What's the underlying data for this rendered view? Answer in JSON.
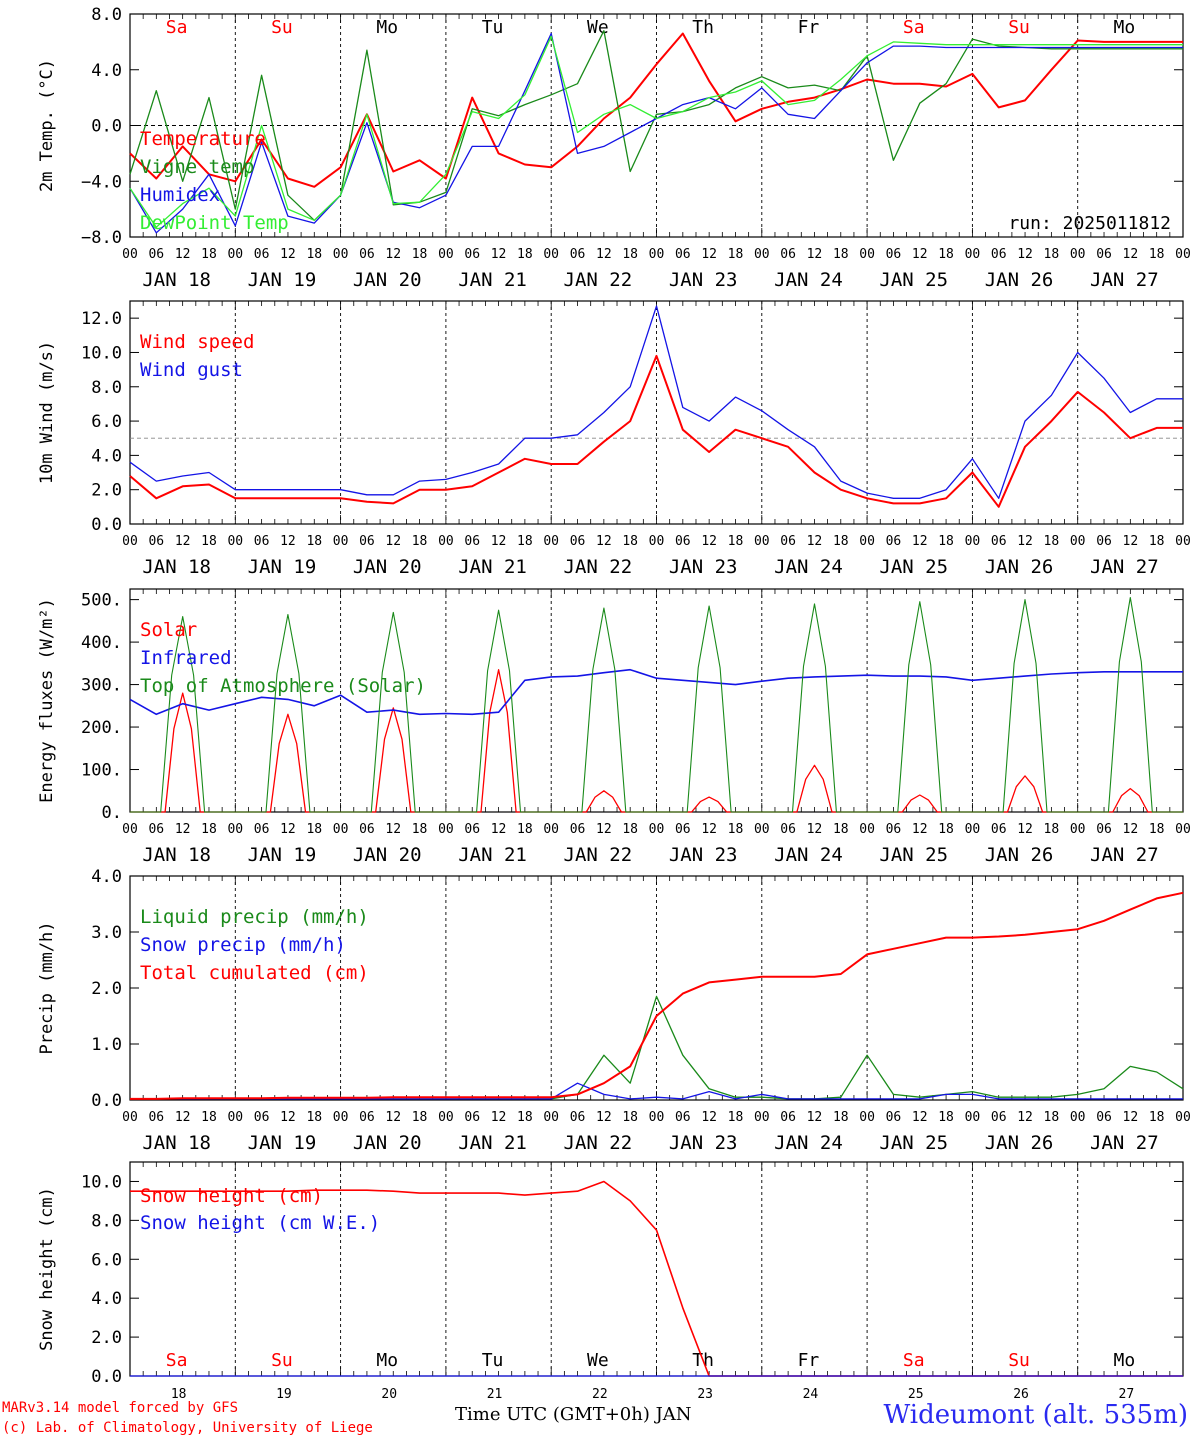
{
  "days": [
    "18",
    "19",
    "20",
    "21",
    "22",
    "23",
    "24",
    "25",
    "26",
    "27"
  ],
  "day_labels": [
    "JAN 18",
    "JAN 19",
    "JAN 20",
    "JAN 21",
    "JAN 22",
    "JAN 23",
    "JAN 24",
    "JAN 25",
    "JAN 26",
    "JAN 27"
  ],
  "weekdays": [
    "Sa",
    "Su",
    "Mo",
    "Tu",
    "We",
    "Th",
    "Fr",
    "Sa",
    "Su",
    "Mo"
  ],
  "weekday_colors": [
    "#ff0000",
    "#ff0000",
    "#000000",
    "#000000",
    "#000000",
    "#000000",
    "#000000",
    "#ff0000",
    "#ff0000",
    "#000000"
  ],
  "hour_ticks": [
    "00",
    "06",
    "12",
    "18"
  ],
  "colors": {
    "red": "#ff0000",
    "green": "#1a8a1a",
    "blue": "#1414e6",
    "lightgreen": "#33ee33"
  },
  "footer": {
    "model": "MARv3.14 model forced by GFS",
    "credit": "(c) Lab. of Climatology, University of Liege",
    "xaxis": "Time UTC (GMT+0h) JAN",
    "station": "Wideumont (alt. 535m)"
  },
  "chart_data": [
    {
      "id": "temp",
      "type": "line",
      "ylabel": "2m Temp. (°C)",
      "ylim": [
        -8,
        8
      ],
      "yticks": [
        8,
        4,
        0,
        -4,
        -8
      ],
      "ytick_labels": [
        "8.0",
        "4.0",
        "0.0",
        "−4.0",
        "−8.0"
      ],
      "ref_line": 0,
      "annotation": "run: 2025011812",
      "x_hours": [
        0,
        6,
        12,
        18,
        24,
        30,
        36,
        42,
        48,
        54,
        60,
        66,
        72,
        78,
        84,
        90,
        96,
        102,
        108,
        114,
        120,
        126,
        132,
        138,
        144,
        150,
        156,
        162,
        168,
        174,
        180,
        186,
        192,
        198,
        204,
        210,
        216,
        222,
        228,
        234,
        240
      ],
      "series": [
        {
          "name": "Temperature",
          "color": "red",
          "width": 2,
          "values": [
            -2,
            -3.8,
            -1.5,
            -3.5,
            -4,
            -1,
            -3.8,
            -4.4,
            -3,
            0.8,
            -3.3,
            -2.5,
            -3.8,
            2,
            -2,
            -2.8,
            -3,
            -1.5,
            0.5,
            2,
            4.4,
            6.6,
            3.2,
            0.3,
            1.2,
            1.7,
            2,
            2.6,
            3.3,
            3,
            3,
            2.8,
            3.7,
            1.3,
            1.8,
            4,
            6.1,
            6,
            6,
            6,
            6
          ]
        },
        {
          "name": "Vigne temp",
          "color": "green",
          "width": 1.3,
          "values": [
            -3.5,
            2.5,
            -4,
            2,
            -6,
            3.6,
            -5,
            -6.8,
            -5,
            5.4,
            -5.7,
            -5.5,
            -4.8,
            1.2,
            0.7,
            1.5,
            2.2,
            3,
            6.8,
            -3.3,
            0.8,
            1,
            1.5,
            2.7,
            3.5,
            2.7,
            2.9,
            2.5,
            5,
            -2.5,
            1.6,
            3,
            6.2,
            5.7,
            5.6,
            5.5,
            5.5,
            5.5,
            5.5,
            5.5,
            5.5
          ]
        },
        {
          "name": "Humidex",
          "color": "blue",
          "width": 1.3,
          "values": [
            -4.5,
            -7.7,
            -6,
            -3.5,
            -7.2,
            -1.2,
            -6.5,
            -7,
            -5,
            0.2,
            -5.5,
            -5.9,
            -5,
            -1.5,
            -1.5,
            2.5,
            6.6,
            -2,
            -1.5,
            -0.5,
            0.5,
            1.5,
            2,
            1.2,
            2.7,
            0.8,
            0.5,
            2.5,
            4.5,
            5.7,
            5.7,
            5.6,
            5.6,
            5.6,
            5.6,
            5.6,
            5.6,
            5.6,
            5.6,
            5.6,
            5.6
          ]
        },
        {
          "name": "DewPoint Temp",
          "color": "lightgreen",
          "width": 1.3,
          "values": [
            -4.5,
            -7.3,
            -5.6,
            -4.5,
            -6.5,
            0,
            -6,
            -6.8,
            -5,
            0.8,
            -5.6,
            -5.5,
            -3.5,
            1,
            0.5,
            2.2,
            6.4,
            -0.5,
            0.8,
            1.5,
            0.5,
            1,
            2,
            2.4,
            3.2,
            1.5,
            1.8,
            3.3,
            5,
            6,
            5.9,
            5.8,
            5.8,
            5.8,
            5.8,
            5.8,
            5.8,
            5.8,
            5.8,
            5.8,
            5.8
          ]
        }
      ]
    },
    {
      "id": "wind",
      "type": "line",
      "ylabel": "10m Wind (m/s)",
      "ylim": [
        0,
        13
      ],
      "yticks": [
        0,
        2,
        4,
        6,
        8,
        10,
        12
      ],
      "ytick_labels": [
        "0.0",
        "2.0",
        "4.0",
        "6.0",
        "8.0",
        "10.0",
        "12.0"
      ],
      "ref_line": 5,
      "x_hours": [
        0,
        6,
        12,
        18,
        24,
        30,
        36,
        42,
        48,
        54,
        60,
        66,
        72,
        78,
        84,
        90,
        96,
        102,
        108,
        114,
        120,
        126,
        132,
        138,
        144,
        150,
        156,
        162,
        168,
        174,
        180,
        186,
        192,
        198,
        204,
        210,
        216,
        222,
        228,
        234,
        240
      ],
      "series": [
        {
          "name": "Wind speed",
          "color": "red",
          "width": 2,
          "values": [
            2.8,
            1.5,
            2.2,
            2.3,
            1.5,
            1.5,
            1.5,
            1.5,
            1.5,
            1.3,
            1.2,
            2,
            2,
            2.2,
            3,
            3.8,
            3.5,
            3.5,
            4.8,
            6,
            9.8,
            5.5,
            4.2,
            5.5,
            5,
            4.5,
            3,
            2,
            1.5,
            1.2,
            1.2,
            1.5,
            3,
            1,
            4.5,
            6,
            7.7,
            6.5,
            5,
            5.6,
            5.6
          ]
        },
        {
          "name": "Wind gust",
          "color": "blue",
          "width": 1.3,
          "values": [
            3.6,
            2.5,
            2.8,
            3,
            2,
            2,
            2,
            2,
            2,
            1.7,
            1.7,
            2.5,
            2.6,
            3,
            3.5,
            5,
            5,
            5.2,
            6.5,
            8,
            12.7,
            6.8,
            6,
            7.4,
            6.6,
            5.5,
            4.5,
            2.5,
            1.8,
            1.5,
            1.5,
            2,
            3.8,
            1.5,
            6,
            7.5,
            10,
            8.5,
            6.5,
            7.3,
            7.3
          ]
        }
      ]
    },
    {
      "id": "energy",
      "type": "line",
      "ylabel": "Energy fluxes (W/m²)",
      "ylim": [
        0,
        525
      ],
      "yticks": [
        0,
        100,
        200,
        300,
        400,
        500
      ],
      "ytick_labels": [
        "0.",
        "100.",
        "200.",
        "300.",
        "400.",
        "500."
      ],
      "x_hours": [
        0,
        6,
        12,
        18,
        24,
        30,
        36,
        42,
        48,
        54,
        60,
        66,
        72,
        78,
        84,
        90,
        96,
        102,
        108,
        114,
        120,
        126,
        132,
        138,
        144,
        150,
        156,
        162,
        168,
        174,
        180,
        186,
        192,
        198,
        204,
        210,
        216,
        222,
        228,
        234,
        240
      ],
      "series": [
        {
          "name": "Solar",
          "color": "red",
          "width": 1.3,
          "peaks": [
            [
              12,
              280
            ],
            [
              36,
              230
            ],
            [
              60,
              245
            ],
            [
              84,
              335
            ],
            [
              108,
              50
            ],
            [
              132,
              35
            ],
            [
              156,
              110
            ],
            [
              180,
              40
            ],
            [
              204,
              85
            ],
            [
              228,
              55
            ]
          ]
        },
        {
          "name": "Infrared",
          "color": "blue",
          "width": 1.6,
          "values": [
            265,
            230,
            255,
            240,
            255,
            270,
            265,
            250,
            275,
            235,
            240,
            230,
            232,
            230,
            235,
            310,
            318,
            320,
            328,
            335,
            315,
            310,
            305,
            300,
            308,
            315,
            318,
            320,
            322,
            320,
            320,
            318,
            310,
            315,
            320,
            325,
            328,
            330,
            330,
            330,
            330
          ]
        },
        {
          "name": "Top of Atmosphere (Solar)",
          "color": "green",
          "width": 1.1,
          "peaks": [
            [
              12,
              460
            ],
            [
              36,
              465
            ],
            [
              60,
              470
            ],
            [
              84,
              475
            ],
            [
              108,
              480
            ],
            [
              132,
              485
            ],
            [
              156,
              490
            ],
            [
              180,
              495
            ],
            [
              204,
              500
            ],
            [
              228,
              505
            ]
          ]
        }
      ]
    },
    {
      "id": "precip",
      "type": "line",
      "ylabel": "Precip (mm/h)",
      "ylim": [
        0,
        4
      ],
      "yticks": [
        0,
        1,
        2,
        3,
        4
      ],
      "ytick_labels": [
        "0.0",
        "1.0",
        "2.0",
        "3.0",
        "4.0"
      ],
      "x_hours": [
        0,
        6,
        12,
        18,
        24,
        30,
        36,
        42,
        48,
        54,
        60,
        66,
        72,
        78,
        84,
        90,
        96,
        102,
        108,
        114,
        120,
        126,
        132,
        138,
        144,
        150,
        156,
        162,
        168,
        174,
        180,
        186,
        192,
        198,
        204,
        210,
        216,
        222,
        228,
        234,
        240
      ],
      "series": [
        {
          "name": "Liquid precip (mm/h)",
          "color": "green",
          "width": 1.3,
          "values": [
            0.02,
            0.02,
            0.02,
            0.02,
            0.02,
            0.02,
            0.02,
            0.02,
            0.02,
            0.02,
            0.02,
            0.02,
            0.02,
            0.02,
            0.02,
            0.02,
            0.02,
            0.1,
            0.8,
            0.3,
            1.85,
            0.8,
            0.2,
            0.05,
            0.05,
            0.02,
            0.02,
            0.05,
            0.8,
            0.1,
            0.05,
            0.1,
            0.15,
            0.05,
            0.05,
            0.05,
            0.1,
            0.2,
            0.6,
            0.5,
            0.2
          ]
        },
        {
          "name": "Snow precip (mm/h)",
          "color": "blue",
          "width": 1.3,
          "values": [
            0.02,
            0.02,
            0.02,
            0.02,
            0.02,
            0.02,
            0.02,
            0.02,
            0.02,
            0.02,
            0.02,
            0.02,
            0.02,
            0.02,
            0.02,
            0.02,
            0.02,
            0.3,
            0.1,
            0.02,
            0.05,
            0.02,
            0.15,
            0.02,
            0.1,
            0.02,
            0.02,
            0.02,
            0.02,
            0.02,
            0.02,
            0.1,
            0.1,
            0.02,
            0.02,
            0.02,
            0.02,
            0.02,
            0.02,
            0.02,
            0.02
          ]
        },
        {
          "name": "Total cumulated (cm)",
          "color": "red",
          "width": 2,
          "values": [
            0.02,
            0.02,
            0.03,
            0.03,
            0.03,
            0.03,
            0.04,
            0.04,
            0.04,
            0.04,
            0.05,
            0.05,
            0.05,
            0.05,
            0.05,
            0.05,
            0.05,
            0.1,
            0.3,
            0.6,
            1.5,
            1.9,
            2.1,
            2.15,
            2.2,
            2.2,
            2.2,
            2.25,
            2.6,
            2.7,
            2.8,
            2.9,
            2.9,
            2.92,
            2.95,
            3.0,
            3.05,
            3.2,
            3.4,
            3.6,
            3.7
          ]
        }
      ]
    },
    {
      "id": "snow",
      "type": "line",
      "ylabel": "Snow height (cm)",
      "ylim": [
        0,
        11
      ],
      "yticks": [
        0,
        2,
        4,
        6,
        8,
        10
      ],
      "ytick_labels": [
        "0.0",
        "2.0",
        "4.0",
        "6.0",
        "8.0",
        "10.0"
      ],
      "x_hours": [
        0,
        6,
        12,
        18,
        24,
        30,
        36,
        42,
        48,
        54,
        60,
        66,
        72,
        78,
        84,
        90,
        96,
        102,
        108,
        114,
        120,
        126,
        132,
        138,
        144,
        150,
        156,
        162,
        168,
        174,
        180,
        186,
        192,
        198,
        204,
        210,
        216,
        222,
        228,
        234,
        240
      ],
      "series": [
        {
          "name": "Snow height (cm)",
          "color": "red",
          "width": 1.6,
          "values": [
            9.5,
            9.5,
            9.5,
            9.5,
            9.5,
            9.5,
            9.5,
            9.55,
            9.55,
            9.55,
            9.5,
            9.4,
            9.4,
            9.4,
            9.4,
            9.3,
            9.4,
            9.5,
            10,
            9.0,
            7.5,
            3.5,
            0,
            0,
            0,
            0,
            0,
            0,
            0,
            0,
            0,
            0,
            0,
            0,
            0,
            0,
            0,
            0,
            0,
            0,
            0
          ]
        },
        {
          "name": "Snow height (cm W.E.)",
          "color": "blue",
          "width": 1.3,
          "values": [
            0,
            0,
            0,
            0,
            0,
            0,
            0,
            0,
            0,
            0,
            0,
            0,
            0,
            0,
            0,
            0,
            0,
            0,
            0,
            0,
            0,
            0,
            0,
            0,
            0,
            0,
            0,
            0,
            0,
            0,
            0,
            0,
            0,
            0,
            0,
            0,
            0,
            0,
            0,
            0,
            0
          ]
        }
      ]
    }
  ]
}
